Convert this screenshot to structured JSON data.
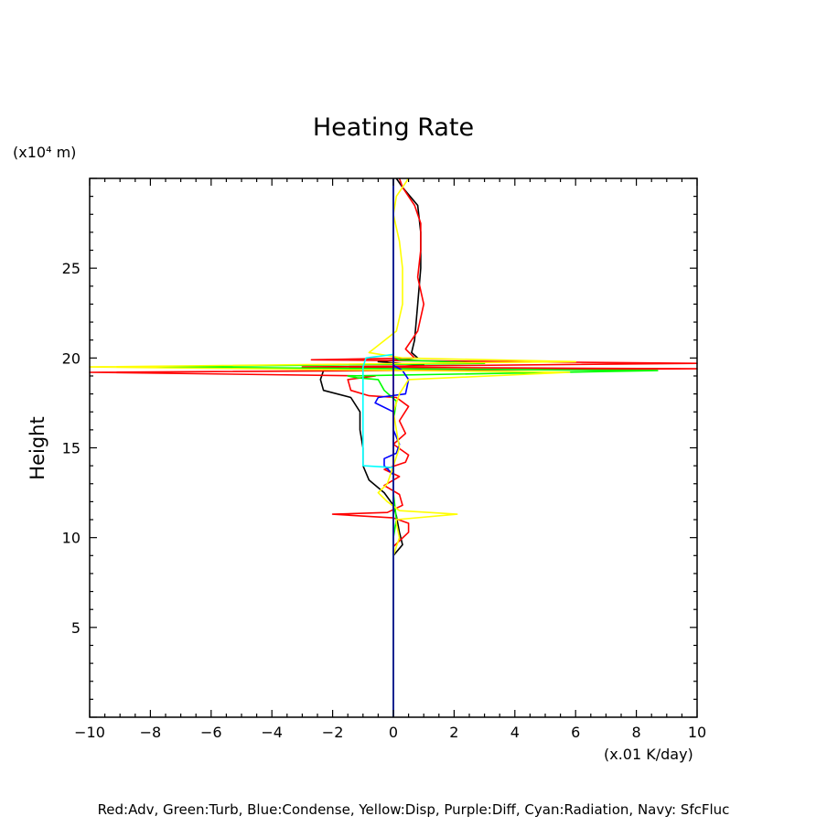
{
  "chart_data": {
    "type": "line",
    "title": "Heating Rate",
    "ylabel": "Height",
    "y_unit_label": "(x10⁴ m)",
    "x_unit_label": "(x.01 K/day)",
    "xlim": [
      -10,
      10
    ],
    "ylim": [
      0,
      30
    ],
    "x_ticks": [
      -10,
      -8,
      -6,
      -4,
      -2,
      0,
      2,
      4,
      6,
      8,
      10
    ],
    "y_ticks": [
      5,
      10,
      15,
      20,
      25
    ],
    "grid": false,
    "legend_text": "Red:Adv, Green:Turb, Blue:Condense, Yellow:Disp, Purple:Diff, Cyan:Radiation, Navy: SfcFluc",
    "series": [
      {
        "color": "#000000",
        "points": [
          [
            0,
            0
          ],
          [
            0,
            9
          ],
          [
            0.3,
            9.6
          ],
          [
            0.2,
            10.3
          ],
          [
            0.1,
            11.2
          ],
          [
            0,
            11.8
          ],
          [
            -0.3,
            12.5
          ],
          [
            -0.8,
            13.2
          ],
          [
            -1,
            14
          ],
          [
            -1,
            15
          ],
          [
            -1.1,
            16
          ],
          [
            -1.1,
            17
          ],
          [
            -1.4,
            17.8
          ],
          [
            -2.3,
            18.2
          ],
          [
            -2.4,
            18.8
          ],
          [
            -2.3,
            19.3
          ],
          [
            1,
            19.6
          ],
          [
            -0.5,
            19.8
          ],
          [
            0.8,
            20
          ],
          [
            0.6,
            20.3
          ],
          [
            0.7,
            21
          ],
          [
            0.8,
            23
          ],
          [
            0.9,
            25
          ],
          [
            0.9,
            27
          ],
          [
            0.8,
            28.5
          ],
          [
            0.3,
            29.5
          ],
          [
            0.1,
            30
          ]
        ]
      },
      {
        "color": "#ff0000",
        "points": [
          [
            0,
            0
          ],
          [
            0,
            9.5
          ],
          [
            0.5,
            10.3
          ],
          [
            0.5,
            10.8
          ],
          [
            0,
            11.1
          ],
          [
            -2,
            11.3
          ],
          [
            -0.2,
            11.4
          ],
          [
            0.3,
            11.8
          ],
          [
            0.2,
            12.4
          ],
          [
            -0.3,
            12.9
          ],
          [
            0.2,
            13.4
          ],
          [
            -0.3,
            13.8
          ],
          [
            0.4,
            14.2
          ],
          [
            0.5,
            14.6
          ],
          [
            0,
            15.2
          ],
          [
            0.4,
            15.8
          ],
          [
            0.2,
            16.5
          ],
          [
            0.5,
            17.3
          ],
          [
            0.1,
            17.8
          ],
          [
            -0.8,
            17.9
          ],
          [
            -1.4,
            18.2
          ],
          [
            -1.5,
            18.8
          ],
          [
            -0.6,
            19
          ],
          [
            -10,
            19.2
          ],
          [
            10,
            19.4
          ],
          [
            -3,
            19.5
          ],
          [
            10,
            19.7
          ],
          [
            -2.7,
            19.9
          ],
          [
            0.7,
            20
          ],
          [
            0.4,
            20.5
          ],
          [
            0.8,
            21.5
          ],
          [
            1,
            23
          ],
          [
            0.8,
            24.5
          ],
          [
            0.9,
            26
          ],
          [
            0.9,
            27.5
          ],
          [
            0.7,
            28.5
          ],
          [
            0.3,
            29.5
          ],
          [
            0.2,
            30
          ]
        ]
      },
      {
        "color": "#00ff00",
        "points": [
          [
            0,
            0
          ],
          [
            0,
            10
          ],
          [
            0.1,
            11
          ],
          [
            0,
            12.5
          ],
          [
            0,
            14
          ],
          [
            0,
            16.5
          ],
          [
            0.1,
            17.6
          ],
          [
            -0.3,
            18.2
          ],
          [
            -0.5,
            18.8
          ],
          [
            -1.2,
            18.9
          ],
          [
            -1.5,
            19
          ],
          [
            8.7,
            19.3
          ],
          [
            -8.3,
            19.5
          ],
          [
            3,
            19.7
          ],
          [
            0.2,
            19.9
          ],
          [
            0,
            20.1
          ],
          [
            0,
            30
          ]
        ]
      },
      {
        "color": "#0000ff",
        "points": [
          [
            0,
            0
          ],
          [
            0,
            13.5
          ],
          [
            -0.3,
            14
          ],
          [
            -0.3,
            14.4
          ],
          [
            0.1,
            14.7
          ],
          [
            0.2,
            15.2
          ],
          [
            0,
            16
          ],
          [
            0,
            17
          ],
          [
            -0.6,
            17.5
          ],
          [
            -0.5,
            17.8
          ],
          [
            0.4,
            18
          ],
          [
            0.5,
            18.8
          ],
          [
            0.3,
            19.3
          ],
          [
            0,
            19.6
          ],
          [
            0,
            30
          ]
        ]
      },
      {
        "color": "#ffff00",
        "points": [
          [
            0,
            0
          ],
          [
            0,
            9
          ],
          [
            0.2,
            10
          ],
          [
            0.1,
            10.8
          ],
          [
            0.1,
            11
          ],
          [
            2.1,
            11.3
          ],
          [
            0.2,
            11.5
          ],
          [
            -0.2,
            12
          ],
          [
            -0.5,
            12.5
          ],
          [
            -0.2,
            13
          ],
          [
            0,
            14
          ],
          [
            0.2,
            15
          ],
          [
            0.1,
            16
          ],
          [
            0,
            17
          ],
          [
            0.2,
            18
          ],
          [
            0.5,
            18.8
          ],
          [
            5.8,
            19.2
          ],
          [
            -10,
            19.5
          ],
          [
            6,
            19.8
          ],
          [
            0.3,
            20
          ],
          [
            -0.8,
            20.3
          ],
          [
            0.1,
            21.5
          ],
          [
            0.3,
            23
          ],
          [
            0.3,
            25
          ],
          [
            0.2,
            26.5
          ],
          [
            0,
            28
          ],
          [
            0.1,
            29
          ],
          [
            0.5,
            30
          ]
        ]
      },
      {
        "color": "#a000c8",
        "points": [
          [
            0,
            0
          ],
          [
            0,
            0.3
          ],
          [
            0,
            30
          ]
        ]
      },
      {
        "color": "#00ffff",
        "points": [
          [
            0,
            0
          ],
          [
            0,
            13.9
          ],
          [
            -1,
            14
          ],
          [
            -1,
            19.5
          ],
          [
            -0.9,
            20
          ],
          [
            0,
            20.2
          ],
          [
            0,
            30
          ]
        ]
      },
      {
        "color": "#000080",
        "points": [
          [
            0,
            0
          ],
          [
            0,
            30
          ]
        ]
      }
    ]
  }
}
